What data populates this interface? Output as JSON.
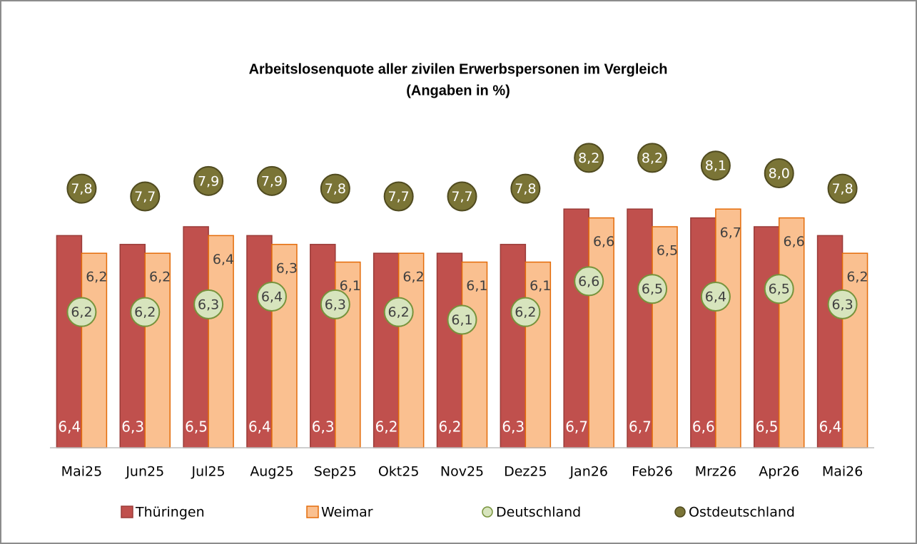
{
  "chart_data": {
    "type": "bar",
    "title": "Arbeitslosenquote aller zivilen Erwerbspersonen im Vergleich",
    "subtitle": "(Angaben in %)",
    "categories": [
      "Mai25",
      "Jun25",
      "Jul25",
      "Aug25",
      "Sep25",
      "Okt25",
      "Nov25",
      "Dez25",
      "Jan26",
      "Feb26",
      "Mrz26",
      "Apr26",
      "Mai26"
    ],
    "ylim": [
      4,
      7
    ],
    "y2lim": [
      4.44,
      7.88
    ],
    "legend": "bottom",
    "series": [
      {
        "name": "Thüringen",
        "type": "bar",
        "color": "#c0504d",
        "values": [
          6.4,
          6.3,
          6.5,
          6.4,
          6.3,
          6.2,
          6.2,
          6.3,
          6.7,
          6.7,
          6.6,
          6.5,
          6.4
        ],
        "value_labels": [
          "6,4",
          "6,3",
          "6,5",
          "6,4",
          "6,3",
          "6,2",
          "6,2",
          "6,3",
          "6,7",
          "6,7",
          "6,6",
          "6,5",
          "6,4"
        ]
      },
      {
        "name": "Weimar",
        "type": "bar",
        "color": "#fac090",
        "values": [
          6.2,
          6.2,
          6.4,
          6.3,
          6.1,
          6.2,
          6.1,
          6.1,
          6.6,
          6.5,
          6.7,
          6.6,
          6.2
        ],
        "value_labels": [
          "6,2",
          "6,2",
          "6,4",
          "6,3",
          "6,1",
          "6,2",
          "6,1",
          "6,1",
          "6,6",
          "6,5",
          "6,7",
          "6,6",
          "6,2"
        ]
      },
      {
        "name": "Deutschland",
        "type": "marker",
        "axis": "y2",
        "color": "#d7e4bd",
        "values": [
          6.2,
          6.2,
          6.3,
          6.4,
          6.3,
          6.2,
          6.1,
          6.2,
          6.6,
          6.5,
          6.4,
          6.5,
          6.3
        ],
        "value_labels": [
          "6,2",
          "6,2",
          "6,3",
          "6,4",
          "6,3",
          "6,2",
          "6,1",
          "6,2",
          "6,6",
          "6,5",
          "6,4",
          "6,5",
          "6,3"
        ]
      },
      {
        "name": "Ostdeutschland",
        "type": "marker",
        "axis": "y2",
        "color": "#7a7436",
        "values": [
          7.8,
          7.7,
          7.9,
          7.9,
          7.8,
          7.7,
          7.7,
          7.8,
          8.2,
          8.2,
          8.1,
          8.0,
          7.8
        ],
        "value_labels": [
          "7,8",
          "7,7",
          "7,9",
          "7,9",
          "7,8",
          "7,7",
          "7,7",
          "7,8",
          "8,2",
          "8,2",
          "8,1",
          "8,0",
          "7,8"
        ]
      }
    ]
  }
}
